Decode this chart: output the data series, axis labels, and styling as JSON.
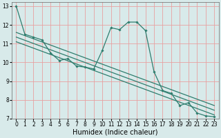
{
  "xlabel": "Humidex (Indice chaleur)",
  "ylabel": "",
  "xlim": [
    -0.5,
    23.5
  ],
  "ylim": [
    7,
    13.2
  ],
  "bg_color": "#d8eaea",
  "line_color": "#2e7d6e",
  "grid_color": "#e8a0a0",
  "series": [
    {
      "x": [
        0,
        1,
        2,
        3,
        4,
        5,
        6,
        7,
        8,
        9,
        10,
        11,
        12,
        13,
        14,
        15,
        16,
        17,
        18,
        19,
        20,
        21,
        22,
        23
      ],
      "y": [
        13.0,
        11.5,
        11.35,
        11.2,
        10.5,
        10.1,
        10.2,
        9.8,
        9.75,
        9.65,
        10.65,
        11.85,
        11.75,
        12.15,
        12.15,
        11.7,
        9.5,
        8.5,
        8.35,
        7.7,
        7.85,
        7.3,
        7.15,
        7.1
      ],
      "marker": true,
      "lw": 0.9
    },
    {
      "x": [
        0,
        23
      ],
      "y": [
        11.6,
        7.7
      ],
      "marker": false,
      "lw": 0.9
    },
    {
      "x": [
        0,
        23
      ],
      "y": [
        11.35,
        7.45
      ],
      "marker": false,
      "lw": 0.9
    },
    {
      "x": [
        0,
        23
      ],
      "y": [
        11.1,
        7.2
      ],
      "marker": false,
      "lw": 0.9
    }
  ],
  "xticks": [
    0,
    1,
    2,
    3,
    4,
    5,
    6,
    7,
    8,
    9,
    10,
    11,
    12,
    13,
    14,
    15,
    16,
    17,
    18,
    19,
    20,
    21,
    22,
    23
  ],
  "yticks": [
    7,
    8,
    9,
    10,
    11,
    12,
    13
  ],
  "tick_fontsize": 5.5,
  "label_fontsize": 7
}
